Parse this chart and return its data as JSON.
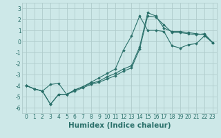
{
  "xlabel": "Humidex (Indice chaleur)",
  "xlim": [
    -0.5,
    23.5
  ],
  "ylim": [
    -6.5,
    3.5
  ],
  "xticks": [
    0,
    1,
    2,
    3,
    4,
    5,
    6,
    7,
    8,
    9,
    10,
    11,
    12,
    13,
    14,
    15,
    16,
    17,
    18,
    19,
    20,
    21,
    22,
    23
  ],
  "yticks": [
    -6,
    -5,
    -4,
    -3,
    -2,
    -1,
    0,
    1,
    2,
    3
  ],
  "background_color": "#cde8e8",
  "grid_color": "#b0cccc",
  "line_color": "#2a706a",
  "line1_x": [
    0,
    1,
    2,
    3,
    4,
    5,
    6,
    7,
    8,
    9,
    10,
    11,
    12,
    13,
    14,
    15,
    16,
    17,
    18,
    19,
    20,
    21,
    22,
    23
  ],
  "line1_y": [
    -4.0,
    -4.3,
    -4.5,
    -5.7,
    -4.8,
    -4.8,
    -4.5,
    -4.2,
    -3.9,
    -3.7,
    -3.4,
    -3.1,
    -2.7,
    -2.4,
    -0.7,
    2.3,
    2.2,
    1.5,
    0.8,
    0.8,
    0.7,
    0.6,
    0.7,
    -0.1
  ],
  "line2_x": [
    0,
    1,
    2,
    3,
    4,
    5,
    6,
    7,
    8,
    9,
    10,
    11,
    12,
    13,
    14,
    15,
    16,
    17,
    18,
    19,
    20,
    21,
    22,
    23
  ],
  "line2_y": [
    -4.0,
    -4.3,
    -4.5,
    -5.7,
    -4.8,
    -4.8,
    -4.4,
    -4.1,
    -3.8,
    -3.6,
    -3.2,
    -2.9,
    -2.5,
    -2.2,
    -0.5,
    2.6,
    2.3,
    1.2,
    0.9,
    0.9,
    0.8,
    0.7,
    0.6,
    -0.1
  ],
  "line3_x": [
    0,
    1,
    2,
    3,
    4,
    5,
    6,
    7,
    8,
    9,
    10,
    11,
    12,
    13,
    14,
    15,
    16,
    17,
    18,
    19,
    20,
    21,
    22,
    23
  ],
  "line3_y": [
    -4.0,
    -4.3,
    -4.5,
    -3.9,
    -3.8,
    -4.8,
    -4.4,
    -4.1,
    -3.7,
    -3.3,
    -2.9,
    -2.5,
    -0.8,
    0.5,
    2.3,
    1.0,
    1.0,
    0.9,
    -0.4,
    -0.6,
    -0.3,
    -0.2,
    0.5,
    -0.1
  ],
  "font_color": "#2a706a",
  "tick_fontsize": 5.5,
  "label_fontsize": 7.5
}
